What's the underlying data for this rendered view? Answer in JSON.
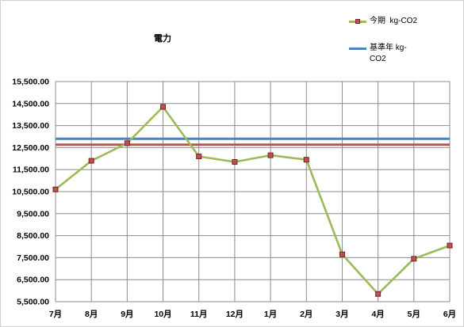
{
  "chart_data": {
    "type": "line",
    "title": "電力",
    "categories": [
      "7月",
      "8月",
      "9月",
      "10月",
      "11月",
      "12月",
      "1月",
      "2月",
      "3月",
      "4月",
      "5月",
      "6月"
    ],
    "ylim": [
      5500,
      15500
    ],
    "ytick_labels": [
      "5,500.00",
      "6,500.00",
      "7,500.00",
      "8,500.00",
      "9,500.00",
      "10,500.00",
      "11,500.00",
      "12,500.00",
      "13,500.00",
      "14,500.00",
      "15,500.00"
    ],
    "grid": true,
    "legend": "top-right",
    "series": [
      {
        "name": "今期  kg-CO2",
        "values": [
          10600,
          11900,
          12700,
          14350,
          12100,
          11850,
          12150,
          11950,
          7650,
          5850,
          7450,
          8050
        ],
        "color": "#9BBB59",
        "marker": "square",
        "marker_color": "#C0504D"
      },
      {
        "name": "基準年 kg-CO2",
        "values": [
          12900,
          12900,
          12900,
          12900,
          12900,
          12900,
          12900,
          12900,
          12900,
          12900,
          12900,
          12900
        ],
        "color": "#4F81BD"
      },
      {
        "values": [
          12630,
          12630,
          12630,
          12630,
          12630,
          12630,
          12630,
          12630,
          12630,
          12630,
          12630,
          12630
        ],
        "color": "#C0504D"
      }
    ],
    "colors": {
      "gridline": "#8C8C8C",
      "border": "#D0D0D0"
    }
  }
}
